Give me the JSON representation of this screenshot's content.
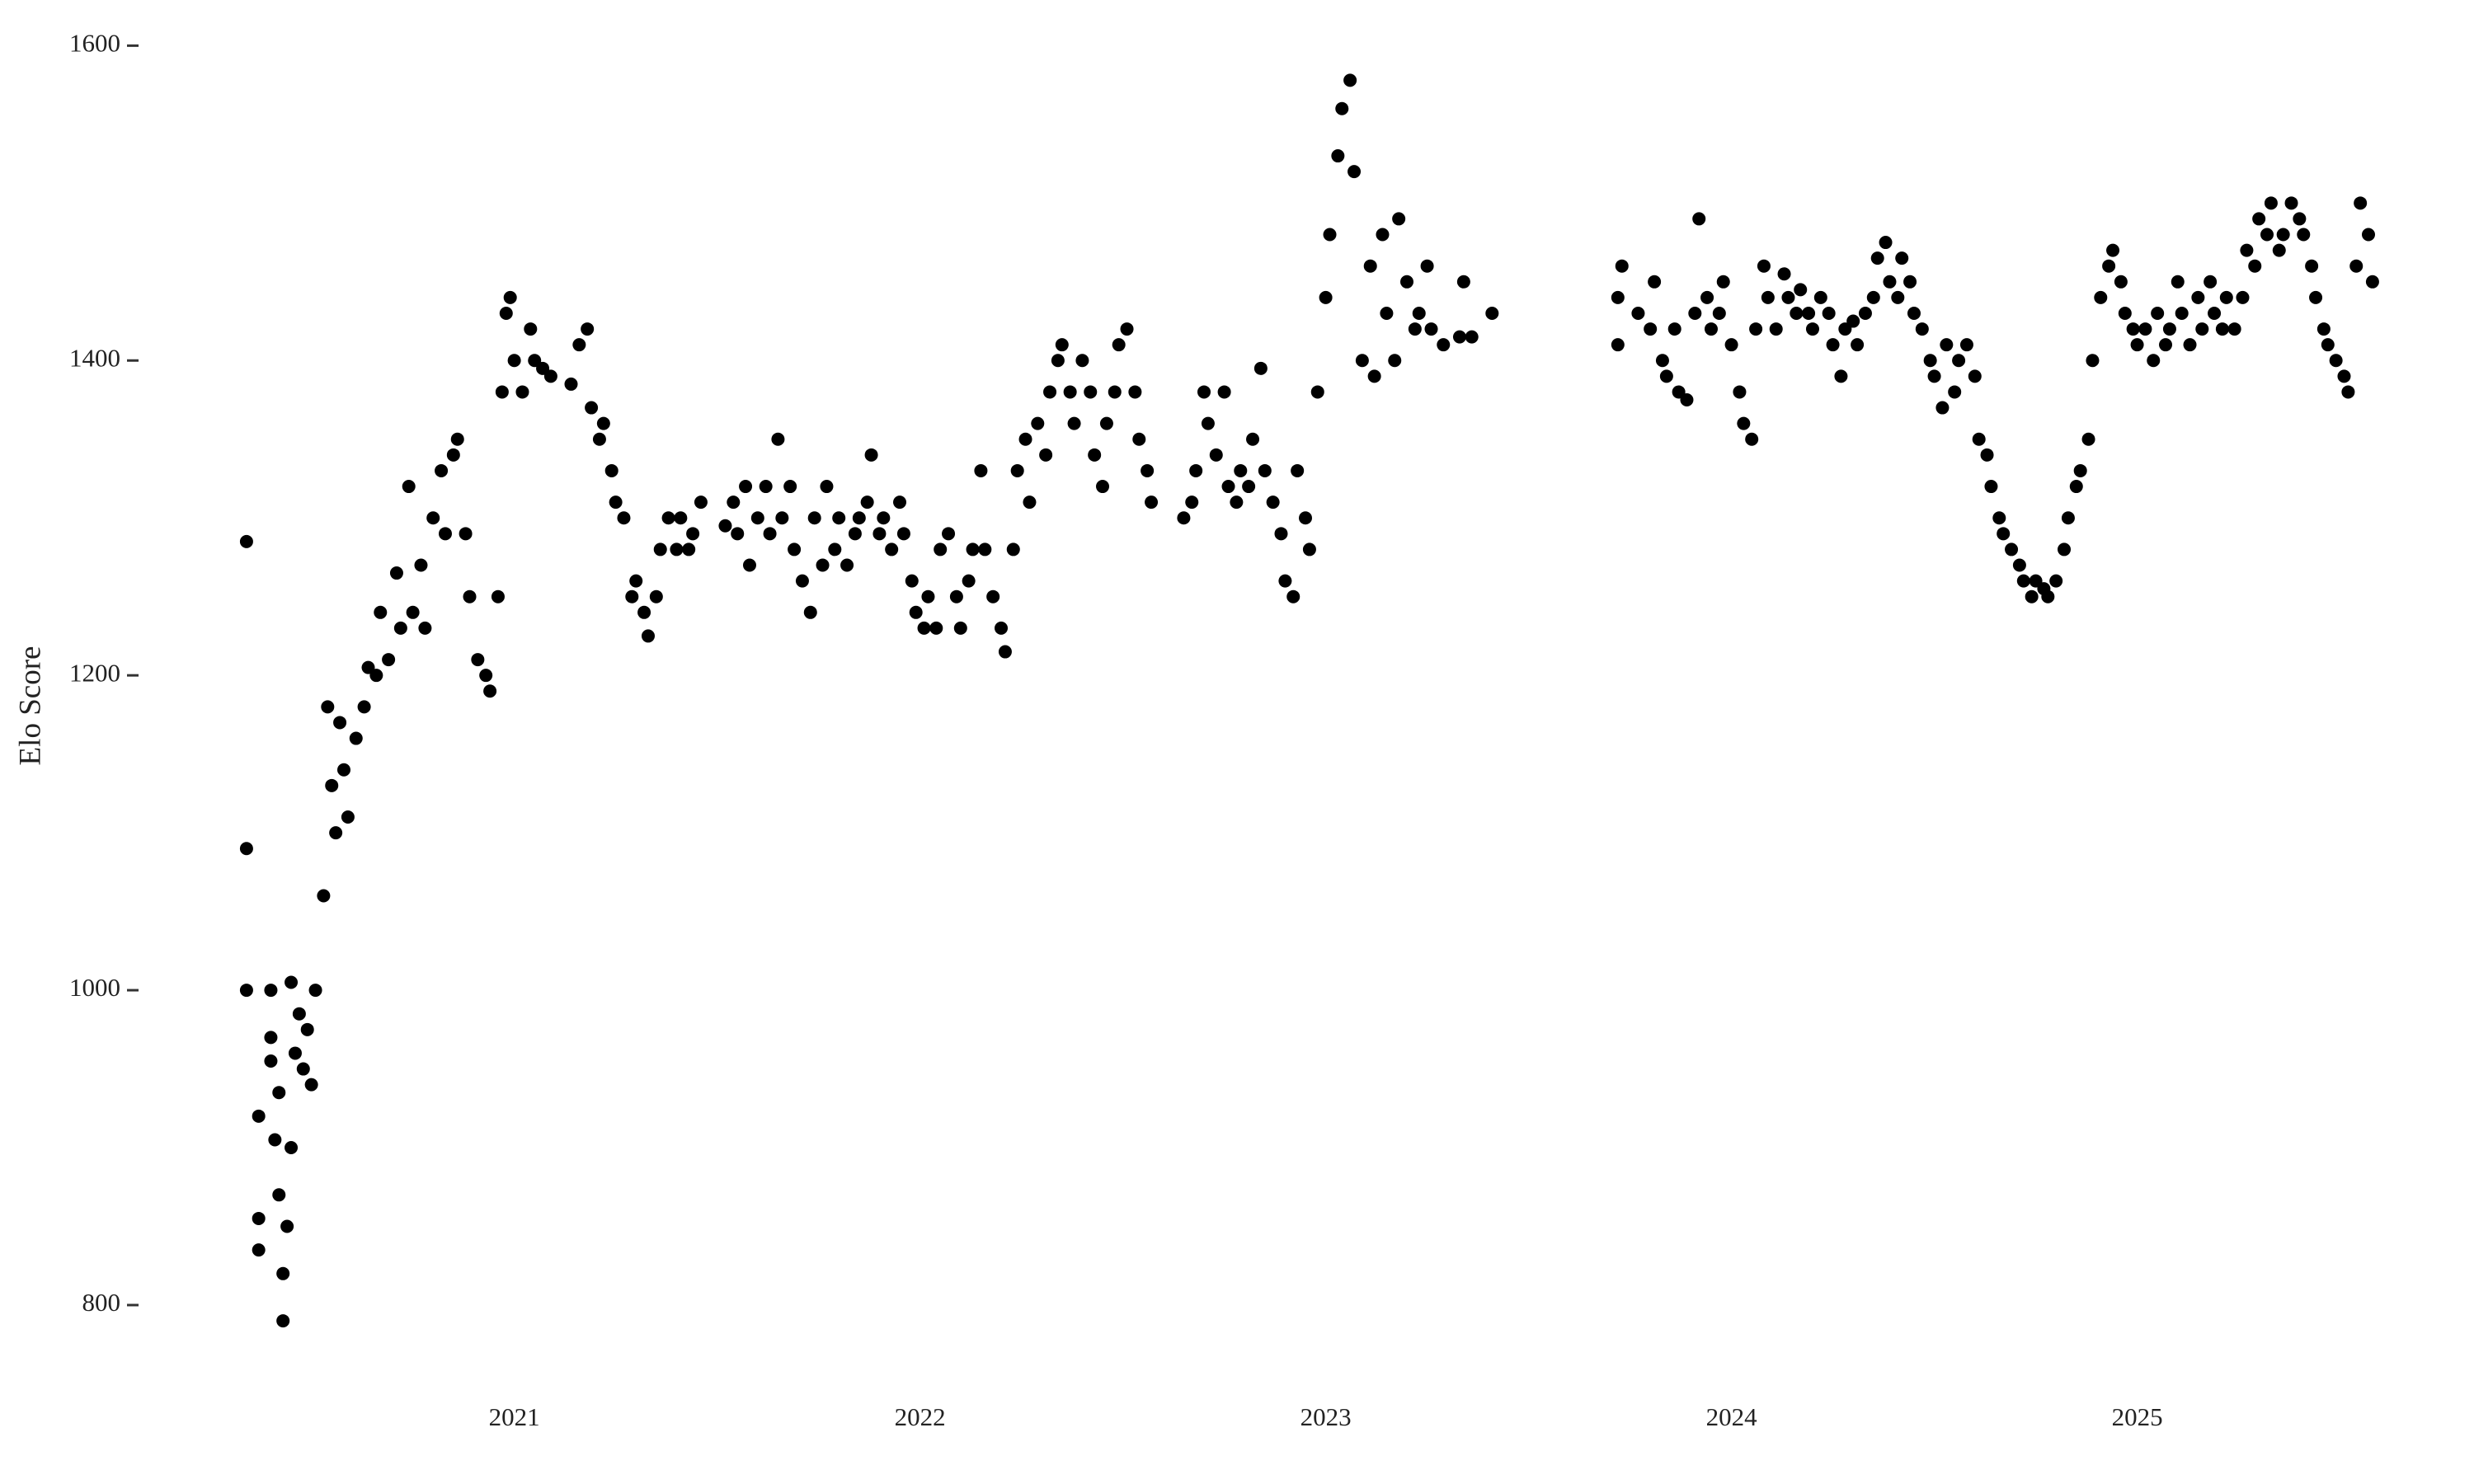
{
  "chart_data": {
    "type": "scatter",
    "y_label": "Elo Score",
    "color": "#000000",
    "xlim": [
      2020.08,
      2025.82
    ],
    "ylim": [
      745,
      1618
    ],
    "xticks": [
      2021,
      2022,
      2023,
      2024,
      2025
    ],
    "yticks": [
      800,
      1000,
      1200,
      1400,
      1600
    ],
    "x": [
      2020.34,
      2020.34,
      2020.34,
      2020.37,
      2020.37,
      2020.37,
      2020.4,
      2020.4,
      2020.4,
      2020.41,
      2020.42,
      2020.42,
      2020.43,
      2020.43,
      2020.44,
      2020.45,
      2020.45,
      2020.46,
      2020.47,
      2020.48,
      2020.49,
      2020.5,
      2020.51,
      2020.53,
      2020.54,
      2020.55,
      2020.56,
      2020.57,
      2020.58,
      2020.59,
      2020.61,
      2020.63,
      2020.64,
      2020.66,
      2020.67,
      2020.69,
      2020.71,
      2020.72,
      2020.74,
      2020.75,
      2020.77,
      2020.78,
      2020.8,
      2020.82,
      2020.83,
      2020.85,
      2020.86,
      2020.88,
      2020.89,
      2020.91,
      2020.93,
      2020.94,
      2020.96,
      2020.97,
      2020.98,
      2020.99,
      2021.0,
      2021.02,
      2021.04,
      2021.05,
      2021.07,
      2021.09,
      2021.14,
      2021.16,
      2021.18,
      2021.19,
      2021.21,
      2021.22,
      2021.24,
      2021.25,
      2021.27,
      2021.29,
      2021.3,
      2021.32,
      2021.33,
      2021.35,
      2021.36,
      2021.38,
      2021.4,
      2021.41,
      2021.43,
      2021.44,
      2021.46,
      2021.52,
      2021.54,
      2021.55,
      2021.57,
      2021.58,
      2021.6,
      2021.62,
      2021.63,
      2021.65,
      2021.66,
      2021.68,
      2021.69,
      2021.71,
      2021.73,
      2021.74,
      2021.76,
      2021.77,
      2021.79,
      2021.8,
      2021.82,
      2021.84,
      2021.85,
      2021.87,
      2021.88,
      2021.9,
      2021.91,
      2021.93,
      2021.95,
      2021.96,
      2021.98,
      2021.99,
      2022.01,
      2022.02,
      2022.04,
      2022.05,
      2022.07,
      2022.09,
      2022.1,
      2022.12,
      2022.13,
      2022.15,
      2022.16,
      2022.18,
      2022.2,
      2022.21,
      2022.23,
      2022.24,
      2022.26,
      2022.27,
      2022.29,
      2022.31,
      2022.32,
      2022.34,
      2022.35,
      2022.37,
      2022.38,
      2022.4,
      2022.42,
      2022.43,
      2022.45,
      2022.46,
      2022.48,
      2022.49,
      2022.51,
      2022.53,
      2022.54,
      2022.56,
      2022.57,
      2022.65,
      2022.67,
      2022.68,
      2022.7,
      2022.71,
      2022.73,
      2022.75,
      2022.76,
      2022.78,
      2022.79,
      2022.81,
      2022.82,
      2022.84,
      2022.85,
      2022.87,
      2022.89,
      2022.9,
      2022.92,
      2022.93,
      2022.95,
      2022.96,
      2022.98,
      2023.0,
      2023.01,
      2023.03,
      2023.04,
      2023.06,
      2023.07,
      2023.09,
      2023.11,
      2023.12,
      2023.14,
      2023.15,
      2023.17,
      2023.18,
      2023.2,
      2023.22,
      2023.23,
      2023.25,
      2023.26,
      2023.29,
      2023.33,
      2023.34,
      2023.36,
      2023.41,
      2023.72,
      2023.72,
      2023.73,
      2023.77,
      2023.8,
      2023.81,
      2023.83,
      2023.84,
      2023.86,
      2023.87,
      2023.89,
      2023.91,
      2023.92,
      2023.94,
      2023.95,
      2023.97,
      2023.98,
      2024.0,
      2024.02,
      2024.03,
      2024.05,
      2024.06,
      2024.08,
      2024.09,
      2024.11,
      2024.13,
      2024.14,
      2024.16,
      2024.17,
      2024.19,
      2024.2,
      2024.22,
      2024.24,
      2024.25,
      2024.27,
      2024.28,
      2024.3,
      2024.31,
      2024.33,
      2024.35,
      2024.36,
      2024.38,
      2024.39,
      2024.41,
      2024.42,
      2024.44,
      2024.45,
      2024.47,
      2024.49,
      2024.5,
      2024.52,
      2024.53,
      2024.55,
      2024.56,
      2024.58,
      2024.6,
      2024.61,
      2024.63,
      2024.64,
      2024.66,
      2024.67,
      2024.69,
      2024.71,
      2024.72,
      2024.74,
      2024.75,
      2024.77,
      2024.78,
      2024.8,
      2024.82,
      2024.83,
      2024.85,
      2024.86,
      2024.88,
      2024.89,
      2024.91,
      2024.93,
      2024.94,
      2024.96,
      2024.97,
      2024.99,
      2025.0,
      2025.02,
      2025.04,
      2025.05,
      2025.07,
      2025.08,
      2025.1,
      2025.11,
      2025.13,
      2025.15,
      2025.16,
      2025.18,
      2025.19,
      2025.21,
      2025.22,
      2025.24,
      2025.26,
      2025.27,
      2025.29,
      2025.3,
      2025.32,
      2025.33,
      2025.35,
      2025.36,
      2025.38,
      2025.4,
      2025.41,
      2025.43,
      2025.44,
      2025.46,
      2025.47,
      2025.49,
      2025.51,
      2025.52,
      2025.54,
      2025.55,
      2025.57,
      2025.58
    ],
    "values": [
      1285,
      1090,
      1000,
      920,
      855,
      835,
      1000,
      970,
      955,
      905,
      935,
      870,
      820,
      790,
      850,
      900,
      1005,
      960,
      985,
      950,
      975,
      940,
      1000,
      1060,
      1180,
      1130,
      1100,
      1170,
      1140,
      1110,
      1160,
      1180,
      1205,
      1200,
      1240,
      1210,
      1265,
      1230,
      1320,
      1240,
      1270,
      1230,
      1300,
      1330,
      1290,
      1340,
      1350,
      1290,
      1250,
      1210,
      1200,
      1190,
      1250,
      1380,
      1430,
      1440,
      1400,
      1380,
      1420,
      1400,
      1395,
      1390,
      1385,
      1410,
      1420,
      1370,
      1350,
      1360,
      1330,
      1310,
      1300,
      1250,
      1260,
      1240,
      1225,
      1250,
      1280,
      1300,
      1280,
      1300,
      1280,
      1290,
      1310,
      1295,
      1310,
      1290,
      1320,
      1270,
      1300,
      1320,
      1290,
      1350,
      1300,
      1320,
      1280,
      1260,
      1240,
      1300,
      1270,
      1320,
      1280,
      1300,
      1270,
      1290,
      1300,
      1310,
      1340,
      1290,
      1300,
      1280,
      1310,
      1290,
      1260,
      1240,
      1230,
      1250,
      1230,
      1280,
      1290,
      1250,
      1230,
      1260,
      1280,
      1330,
      1280,
      1250,
      1230,
      1215,
      1280,
      1330,
      1350,
      1310,
      1360,
      1340,
      1380,
      1400,
      1410,
      1380,
      1360,
      1400,
      1380,
      1340,
      1320,
      1360,
      1380,
      1410,
      1420,
      1380,
      1350,
      1330,
      1310,
      1300,
      1310,
      1330,
      1380,
      1360,
      1340,
      1380,
      1320,
      1310,
      1330,
      1320,
      1350,
      1395,
      1330,
      1310,
      1290,
      1260,
      1250,
      1330,
      1300,
      1280,
      1380,
      1440,
      1480,
      1530,
      1560,
      1578,
      1520,
      1400,
      1460,
      1390,
      1480,
      1430,
      1400,
      1490,
      1450,
      1420,
      1430,
      1460,
      1420,
      1410,
      1415,
      1450,
      1415,
      1430,
      1410,
      1440,
      1460,
      1430,
      1420,
      1450,
      1400,
      1390,
      1420,
      1380,
      1375,
      1430,
      1490,
      1440,
      1420,
      1430,
      1450,
      1410,
      1380,
      1360,
      1350,
      1420,
      1460,
      1440,
      1420,
      1455,
      1440,
      1430,
      1445,
      1430,
      1420,
      1440,
      1430,
      1410,
      1390,
      1420,
      1425,
      1410,
      1430,
      1440,
      1465,
      1475,
      1450,
      1440,
      1465,
      1450,
      1430,
      1420,
      1400,
      1390,
      1370,
      1410,
      1380,
      1400,
      1410,
      1390,
      1350,
      1340,
      1320,
      1300,
      1290,
      1280,
      1270,
      1260,
      1250,
      1260,
      1255,
      1250,
      1260,
      1280,
      1300,
      1320,
      1330,
      1350,
      1400,
      1440,
      1460,
      1470,
      1450,
      1430,
      1420,
      1410,
      1420,
      1400,
      1430,
      1410,
      1420,
      1450,
      1430,
      1410,
      1440,
      1420,
      1450,
      1430,
      1420,
      1440,
      1420,
      1440,
      1470,
      1460,
      1490,
      1480,
      1500,
      1470,
      1480,
      1500,
      1490,
      1480,
      1460,
      1440,
      1420,
      1410,
      1400,
      1390,
      1380,
      1460,
      1500,
      1480,
      1450
    ]
  }
}
